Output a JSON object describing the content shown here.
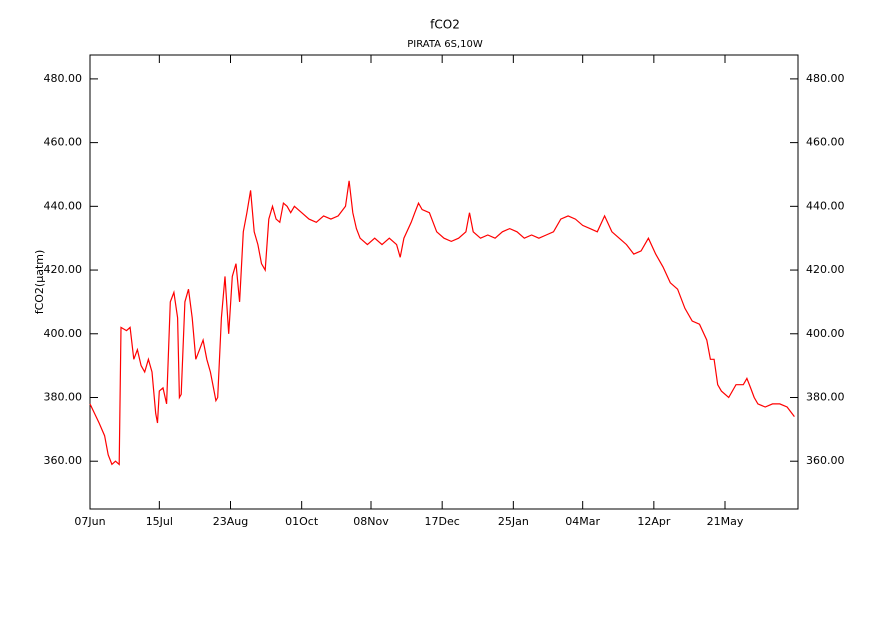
{
  "chart_data": {
    "type": "line",
    "title": "fCO2",
    "subtitle": "PIRATA 6S,10W",
    "y_label": "fCO2(μatm)",
    "color": "#ff0000",
    "xlim": [
      0,
      388
    ],
    "ylim": [
      345,
      487.5
    ],
    "xticks": [
      {
        "value": 0,
        "label": "07Jun"
      },
      {
        "value": 38,
        "label": "15Jul"
      },
      {
        "value": 77,
        "label": "23Aug"
      },
      {
        "value": 116,
        "label": "01Oct"
      },
      {
        "value": 154,
        "label": "08Nov"
      },
      {
        "value": 193,
        "label": "17Dec"
      },
      {
        "value": 232,
        "label": "25Jan"
      },
      {
        "value": 270,
        "label": "04Mar"
      },
      {
        "value": 309,
        "label": "12Apr"
      },
      {
        "value": 348,
        "label": "21May"
      }
    ],
    "yticks": [
      {
        "value": 360,
        "label": "360.00"
      },
      {
        "value": 380,
        "label": "380.00"
      },
      {
        "value": 400,
        "label": "400.00"
      },
      {
        "value": 420,
        "label": "420.00"
      },
      {
        "value": 440,
        "label": "440.00"
      },
      {
        "value": 460,
        "label": "460.00"
      },
      {
        "value": 480,
        "label": "480.00"
      }
    ],
    "x": [
      0,
      5,
      8,
      10,
      12,
      14,
      16,
      17,
      20,
      22,
      24,
      26,
      28,
      30,
      32,
      34,
      36,
      37,
      38,
      40,
      42,
      44,
      46,
      48,
      49,
      50,
      52,
      54,
      56,
      58,
      60,
      62,
      64,
      66,
      68,
      69,
      70,
      72,
      74,
      76,
      78,
      80,
      82,
      84,
      86,
      88,
      90,
      92,
      94,
      96,
      98,
      100,
      102,
      104,
      106,
      108,
      110,
      112,
      116,
      120,
      124,
      128,
      132,
      136,
      140,
      142,
      144,
      146,
      148,
      152,
      156,
      160,
      164,
      168,
      170,
      172,
      176,
      178,
      180,
      182,
      186,
      190,
      194,
      198,
      202,
      206,
      208,
      210,
      214,
      218,
      222,
      226,
      230,
      234,
      238,
      242,
      246,
      250,
      254,
      258,
      262,
      266,
      270,
      274,
      278,
      282,
      286,
      290,
      294,
      298,
      302,
      306,
      310,
      314,
      318,
      322,
      326,
      330,
      334,
      338,
      340,
      342,
      344,
      346,
      350,
      354,
      358,
      360,
      362,
      364,
      366,
      370,
      374,
      378,
      382,
      386
    ],
    "values": [
      378,
      372,
      368,
      362,
      359,
      360,
      359,
      402,
      401,
      402,
      392,
      395,
      390,
      388,
      392,
      388,
      375,
      372,
      382,
      383,
      378,
      410,
      413,
      405,
      380,
      381,
      410,
      414,
      405,
      392,
      395,
      398,
      392,
      388,
      382,
      379,
      380,
      405,
      418,
      400,
      418,
      422,
      410,
      432,
      438,
      445,
      432,
      428,
      422,
      420,
      436,
      440,
      436,
      435,
      441,
      440,
      438,
      440,
      438,
      436,
      435,
      437,
      436,
      437,
      440,
      448,
      438,
      433,
      430,
      428,
      430,
      428,
      430,
      428,
      424,
      430,
      435,
      438,
      441,
      439,
      438,
      432,
      430,
      429,
      430,
      432,
      438,
      432,
      430,
      431,
      430,
      432,
      433,
      432,
      430,
      431,
      430,
      431,
      432,
      436,
      437,
      436,
      434,
      433,
      432,
      437,
      432,
      430,
      428,
      425,
      426,
      430,
      425,
      421,
      416,
      414,
      408,
      404,
      403,
      398,
      392,
      392,
      384,
      382,
      380,
      384,
      384,
      386,
      383,
      380,
      378,
      377,
      378,
      378,
      377,
      374
    ]
  }
}
